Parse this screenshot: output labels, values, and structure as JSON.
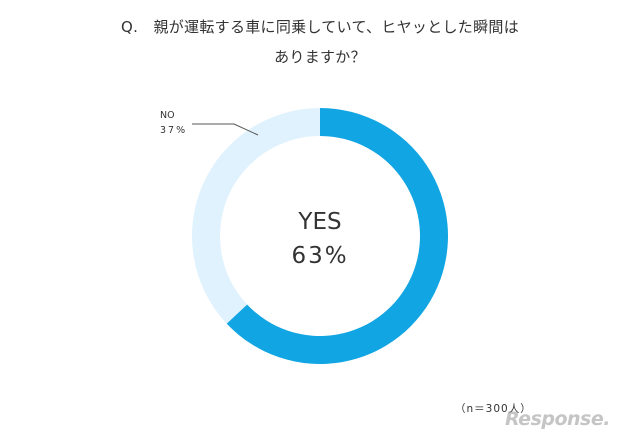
{
  "question": {
    "line1": "Q.　親が運転する車に同乗していて、ヒヤッとした瞬間は",
    "line2": "ありますか？"
  },
  "chart_data": {
    "type": "pie",
    "donut": true,
    "categories": [
      "YES",
      "NO"
    ],
    "values": [
      63,
      37
    ],
    "value_labels": [
      "63%",
      "37%"
    ],
    "colors": [
      "#11a5e3",
      "#dff2fd"
    ],
    "start_angle_deg": 0,
    "direction": "clockwise",
    "labels": {
      "yes_name": "YES",
      "yes_value": "63%",
      "no_name": "NO",
      "no_value": "37%"
    }
  },
  "footnote": "（n＝300人）",
  "watermark": "Response."
}
